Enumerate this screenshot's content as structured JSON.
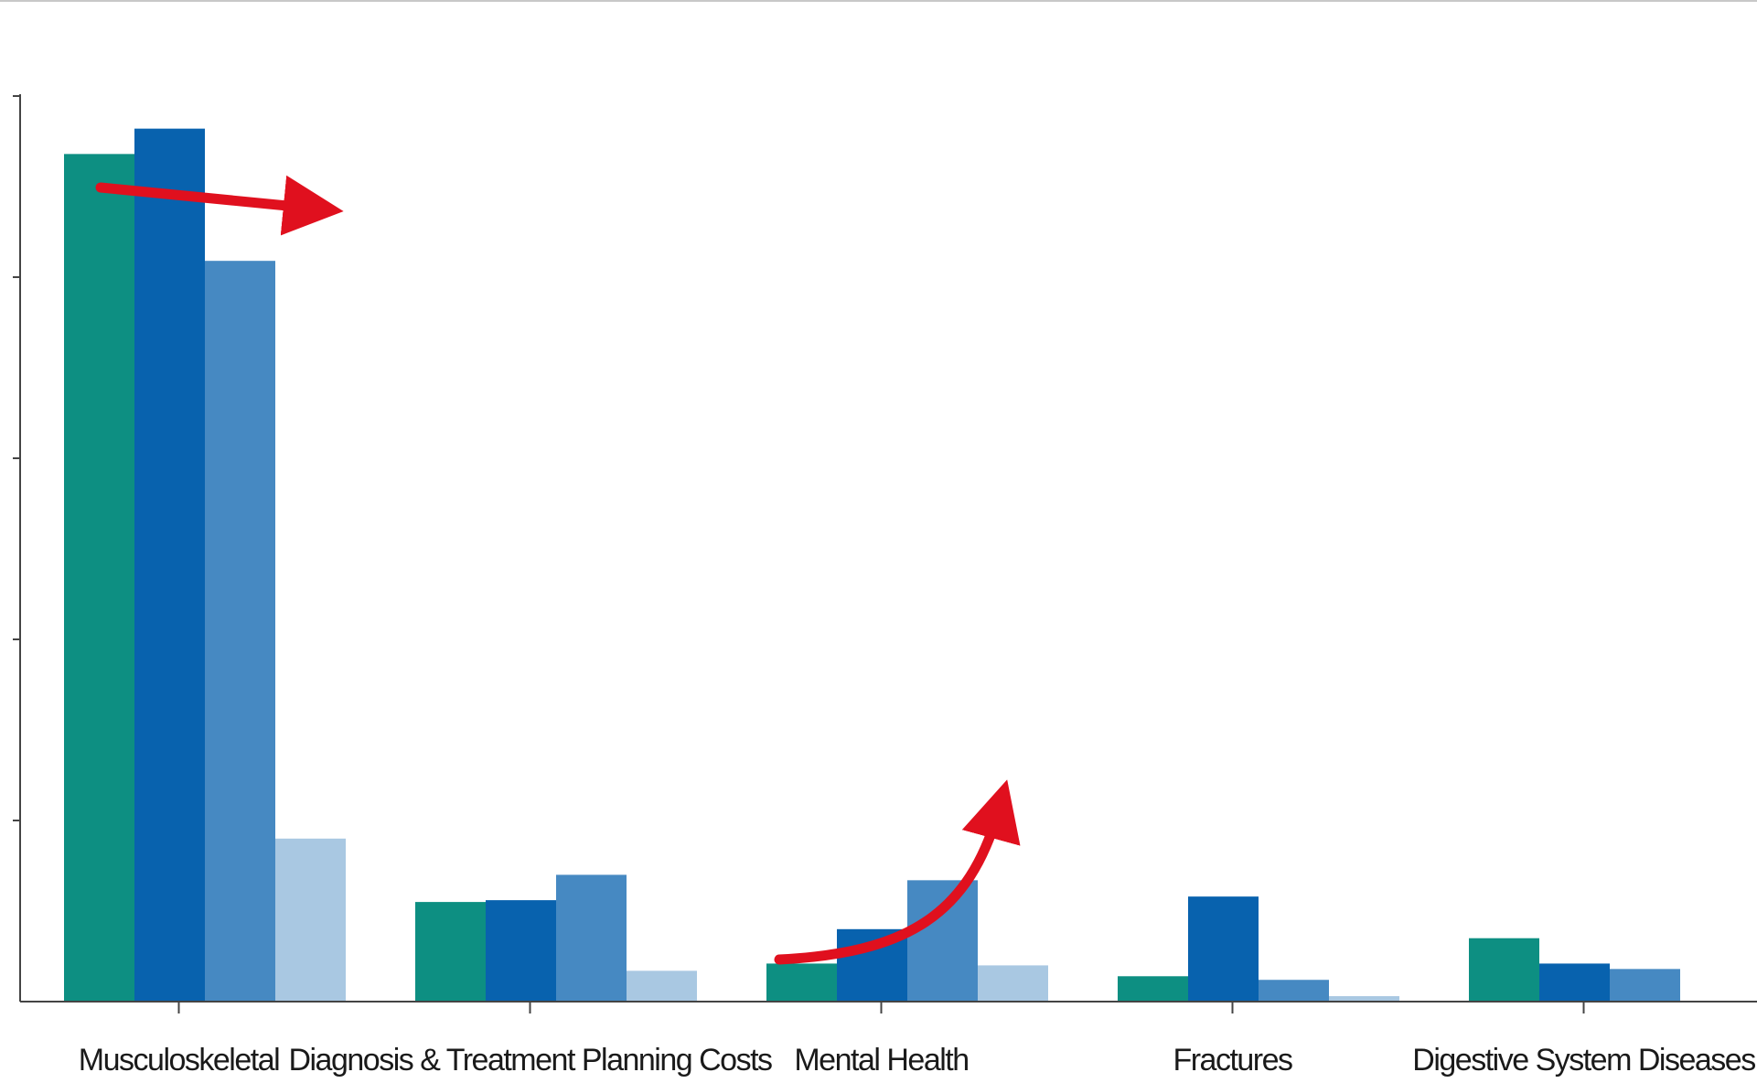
{
  "chart_data": {
    "type": "bar",
    "title": "",
    "xlabel": "",
    "ylabel": "",
    "ylim": [
      0,
      5
    ],
    "yticks": [
      1,
      2,
      3,
      4,
      5
    ],
    "grid": false,
    "legend": "none",
    "categories": [
      "Musculoskeletal",
      "Diagnosis & Treatment Planning Costs",
      "Mental Health",
      "Fractures",
      "Digestive System Diseases"
    ],
    "series": [
      {
        "color": "#0d8f82",
        "values": [
          4.68,
          0.55,
          0.21,
          0.14,
          0.35
        ]
      },
      {
        "color": "#0862ae",
        "values": [
          4.82,
          0.56,
          0.4,
          0.58,
          0.21
        ]
      },
      {
        "color": "#4689c2",
        "values": [
          4.09,
          0.7,
          0.67,
          0.12,
          0.18
        ]
      },
      {
        "color": "#a9c8e2",
        "values": [
          0.9,
          0.17,
          0.2,
          0.03,
          0.0
        ]
      }
    ],
    "annotations": [
      {
        "type": "arrow",
        "color": "#e0101e",
        "category": "Musculoskeletal",
        "trend": "decreasing"
      },
      {
        "type": "arrow",
        "color": "#e0101e",
        "category": "Mental Health",
        "trend": "increasing"
      }
    ]
  }
}
